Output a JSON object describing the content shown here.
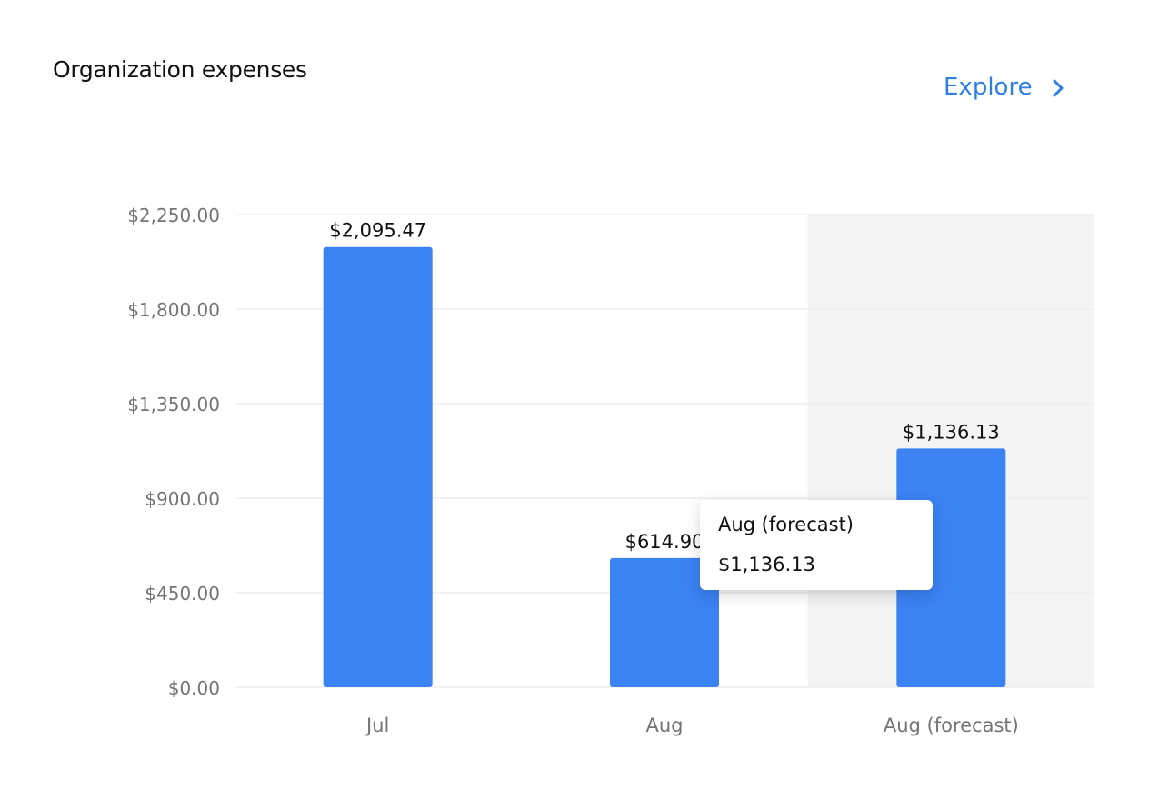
{
  "header": {
    "title": "Organization expenses",
    "explore_label": "Explore",
    "explore_icon": "chevron-right-icon"
  },
  "colors": {
    "bar": "#3b82f3",
    "accent": "#2f7fe0",
    "forecast_band": "#f4f4f4",
    "grid": "#eeeeee",
    "axis_text": "#757575"
  },
  "chart_data": {
    "type": "bar",
    "categories": [
      "Jul",
      "Aug",
      "Aug (forecast)"
    ],
    "values": [
      2095.47,
      614.9,
      1136.13
    ],
    "value_labels": [
      "$2,095.47",
      "$614.90",
      "$1,136.13"
    ],
    "title": "Organization expenses",
    "xlabel": "",
    "ylabel": "",
    "ylim": [
      0,
      2250
    ],
    "y_ticks": [
      0,
      450,
      900,
      1350,
      1800,
      2250
    ],
    "y_tick_labels": [
      "$0.00",
      "$450.00",
      "$900.00",
      "$1,350.00",
      "$1,800.00",
      "$2,250.00"
    ],
    "grid": true,
    "legend": "none",
    "highlighted_category": "Aug (forecast)"
  },
  "tooltip": {
    "title": "Aug (forecast)",
    "value": "$1,136.13"
  }
}
